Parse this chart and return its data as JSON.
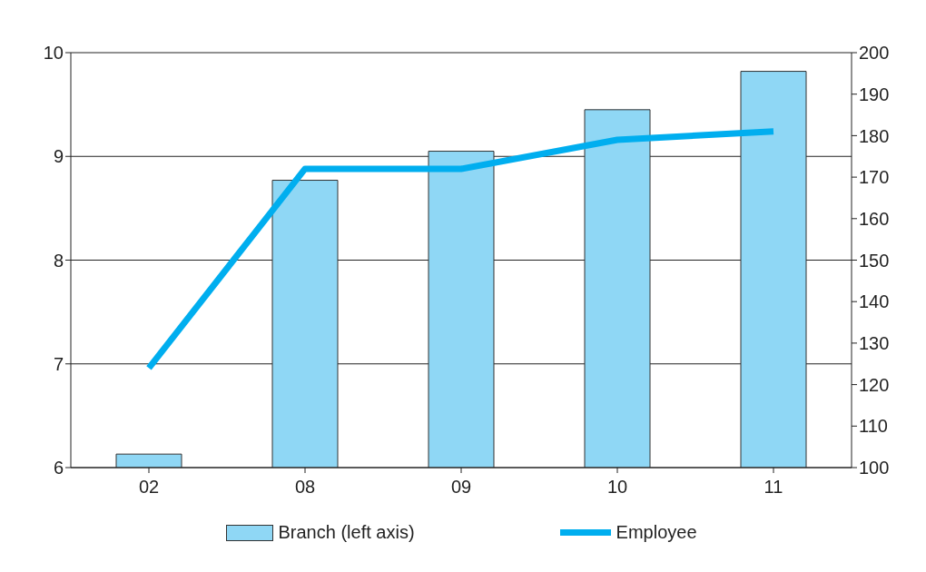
{
  "chart_data": {
    "type": "bar",
    "categories": [
      "02",
      "08",
      "09",
      "10",
      "11"
    ],
    "series": [
      {
        "name": "Branch (left axis)",
        "color": "#8fd7f5",
        "values": [
          6.13,
          8.77,
          9.05,
          9.45,
          9.82
        ]
      },
      {
        "name": "Employee",
        "type": "line",
        "axis": "y2",
        "color": "#00aeef",
        "values": [
          124,
          172,
          172,
          179,
          181
        ]
      }
    ],
    "ylim": [
      6,
      10
    ],
    "yticks": [
      6,
      7,
      8,
      9,
      10
    ],
    "y2lim": [
      100,
      200
    ],
    "y2ticks": [
      100,
      110,
      120,
      130,
      140,
      150,
      160,
      170,
      180,
      190,
      200
    ],
    "grid": "y",
    "legend": "bottom",
    "marker": "none"
  }
}
